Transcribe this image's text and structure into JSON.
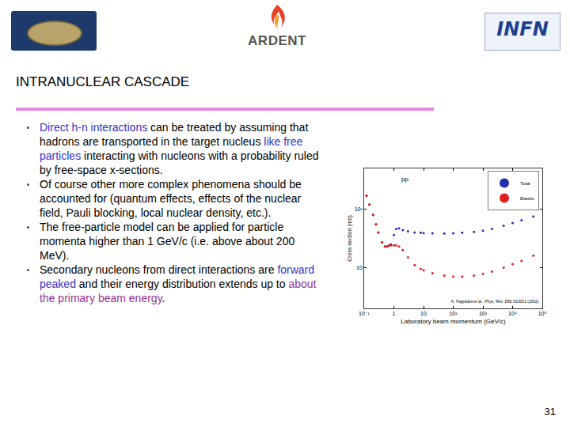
{
  "header": {
    "logos": [
      "ARDENT",
      "INFN"
    ],
    "title": "INTRANUCLEAR CASCADE"
  },
  "bullets": [
    [
      {
        "text": "Direct h-n interactions",
        "color": "#3333cc"
      },
      {
        "text": " can be treated by assuming that hadrons are transported in the target nucleus "
      },
      {
        "text": "like free particles",
        "color": "#3333cc"
      },
      {
        "text": " interacting with nucleons with a probability ruled by free-space x-sections."
      }
    ],
    [
      {
        "text": "Of course other more complex phenomena should be accounted for (quantum effects, effects of the nuclear field, Pauli blocking, local nuclear density, etc.)."
      }
    ],
    [
      {
        "text": "The free-particle model can be applied for particle momenta higher than 1 GeV/c (i.e. above about 200 MeV)."
      }
    ],
    [
      {
        "text": "Secondary nucleons from direct interactions are "
      },
      {
        "text": "forward peaked",
        "color": "#3333cc"
      },
      {
        "text": " and their energy distribution extends up to "
      },
      {
        "text": "about the primary beam energy",
        "color": "#993399"
      },
      {
        "text": "."
      }
    ]
  ],
  "chart_data": {
    "type": "scatter",
    "log": true,
    "grid": false,
    "legend": "upper right",
    "marker": "circle",
    "x_label": "Laboratory beam momentum (GeV/c)",
    "y_label": "Cross section (mb)",
    "annotations": [
      "pp",
      "K. Hagiwara et al., Phys. Rev. D66 010001 (2002)"
    ],
    "x": [
      0.12,
      0.15,
      0.2,
      0.25,
      0.3,
      0.4,
      0.5,
      0.6,
      0.7,
      0.8,
      1.0,
      1.2,
      1.5,
      2,
      3,
      5,
      8,
      10,
      20,
      50,
      100,
      200,
      500,
      1000,
      2000,
      5000,
      10000,
      20000,
      50000
    ],
    "series": [
      {
        "name": "Total",
        "color": "#1f2fb0",
        "values": [
          170,
          120,
          80,
          55,
          40,
          27,
          23,
          23,
          24,
          25,
          36,
          46,
          47,
          44,
          42,
          40,
          39.5,
          39,
          38.8,
          38.5,
          38.8,
          39.5,
          41,
          43,
          46,
          52,
          58,
          65,
          75
        ]
      },
      {
        "name": "Elastic",
        "color": "#e02020",
        "values": [
          170,
          120,
          80,
          55,
          40,
          27,
          23,
          23,
          24,
          24,
          24,
          24,
          23,
          20,
          15,
          11,
          9.5,
          9,
          8,
          7.3,
          7,
          7,
          7.3,
          7.8,
          8.5,
          10,
          11.5,
          13,
          16
        ]
      }
    ],
    "xlim": [
      0.1,
      100000
    ],
    "ylim": [
      2,
      500
    ],
    "xticks": [
      {
        "value": 0.1,
        "label": "10⁻¹"
      },
      1,
      10,
      {
        "value": 100,
        "label": "10²"
      },
      {
        "value": 1000,
        "label": "10³"
      },
      {
        "value": 10000,
        "label": "10⁴"
      },
      {
        "value": 100000,
        "label": "10⁵"
      }
    ],
    "yticks": [
      10,
      {
        "value": 100,
        "label": "10²"
      }
    ]
  },
  "page_number": "31"
}
